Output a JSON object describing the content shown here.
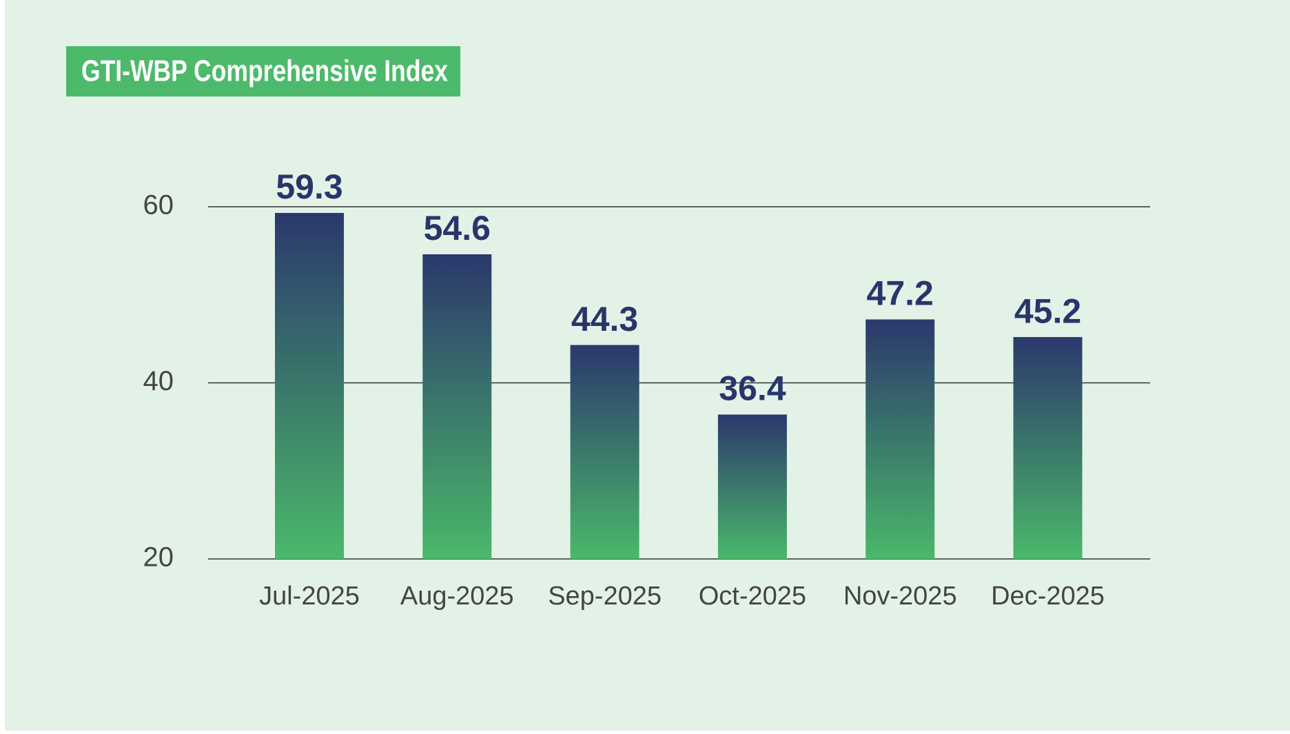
{
  "chart_data": {
    "type": "bar",
    "title": "GTI-WBP Comprehensive Index",
    "categories": [
      "Jul-2025",
      "Aug-2025",
      "Sep-2025",
      "Oct-2025",
      "Nov-2025",
      "Dec-2025"
    ],
    "values": [
      59.3,
      54.6,
      44.3,
      36.4,
      47.2,
      45.2
    ],
    "colors": [
      "#2b386c",
      "#4ab86a"
    ],
    "ylim": [
      20,
      60
    ],
    "yticks": [
      20,
      40,
      60
    ],
    "grid": true
  }
}
